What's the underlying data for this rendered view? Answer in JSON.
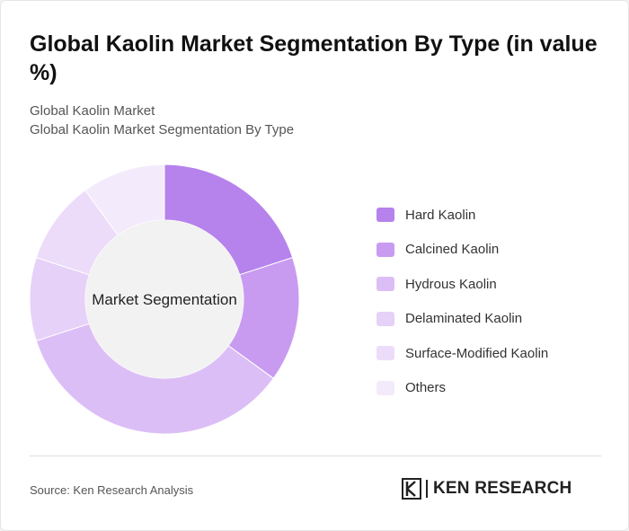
{
  "header": {
    "title": "Global Kaolin Market Segmentation By Type (in value %)",
    "subtitle_line1": "Global Kaolin Market",
    "subtitle_line2": "Global Kaolin Market Segmentation By Type"
  },
  "chart_data": {
    "type": "pie",
    "variant": "donut",
    "center_label": "Market Segmentation",
    "categories": [
      "Hard Kaolin",
      "Calcined Kaolin",
      "Hydrous Kaolin",
      "Delaminated Kaolin",
      "Surface-Modified Kaolin",
      "Others"
    ],
    "values": [
      20,
      15,
      35,
      10,
      10,
      10
    ],
    "colors": [
      "#b682ec",
      "#c89bf1",
      "#dcbef6",
      "#e6d1f8",
      "#ecdcfa",
      "#f3ebfc"
    ],
    "legend_position": "right"
  },
  "footer": {
    "source": "Source: Ken Research Analysis",
    "logo_text": "KEN RESEARCH"
  }
}
